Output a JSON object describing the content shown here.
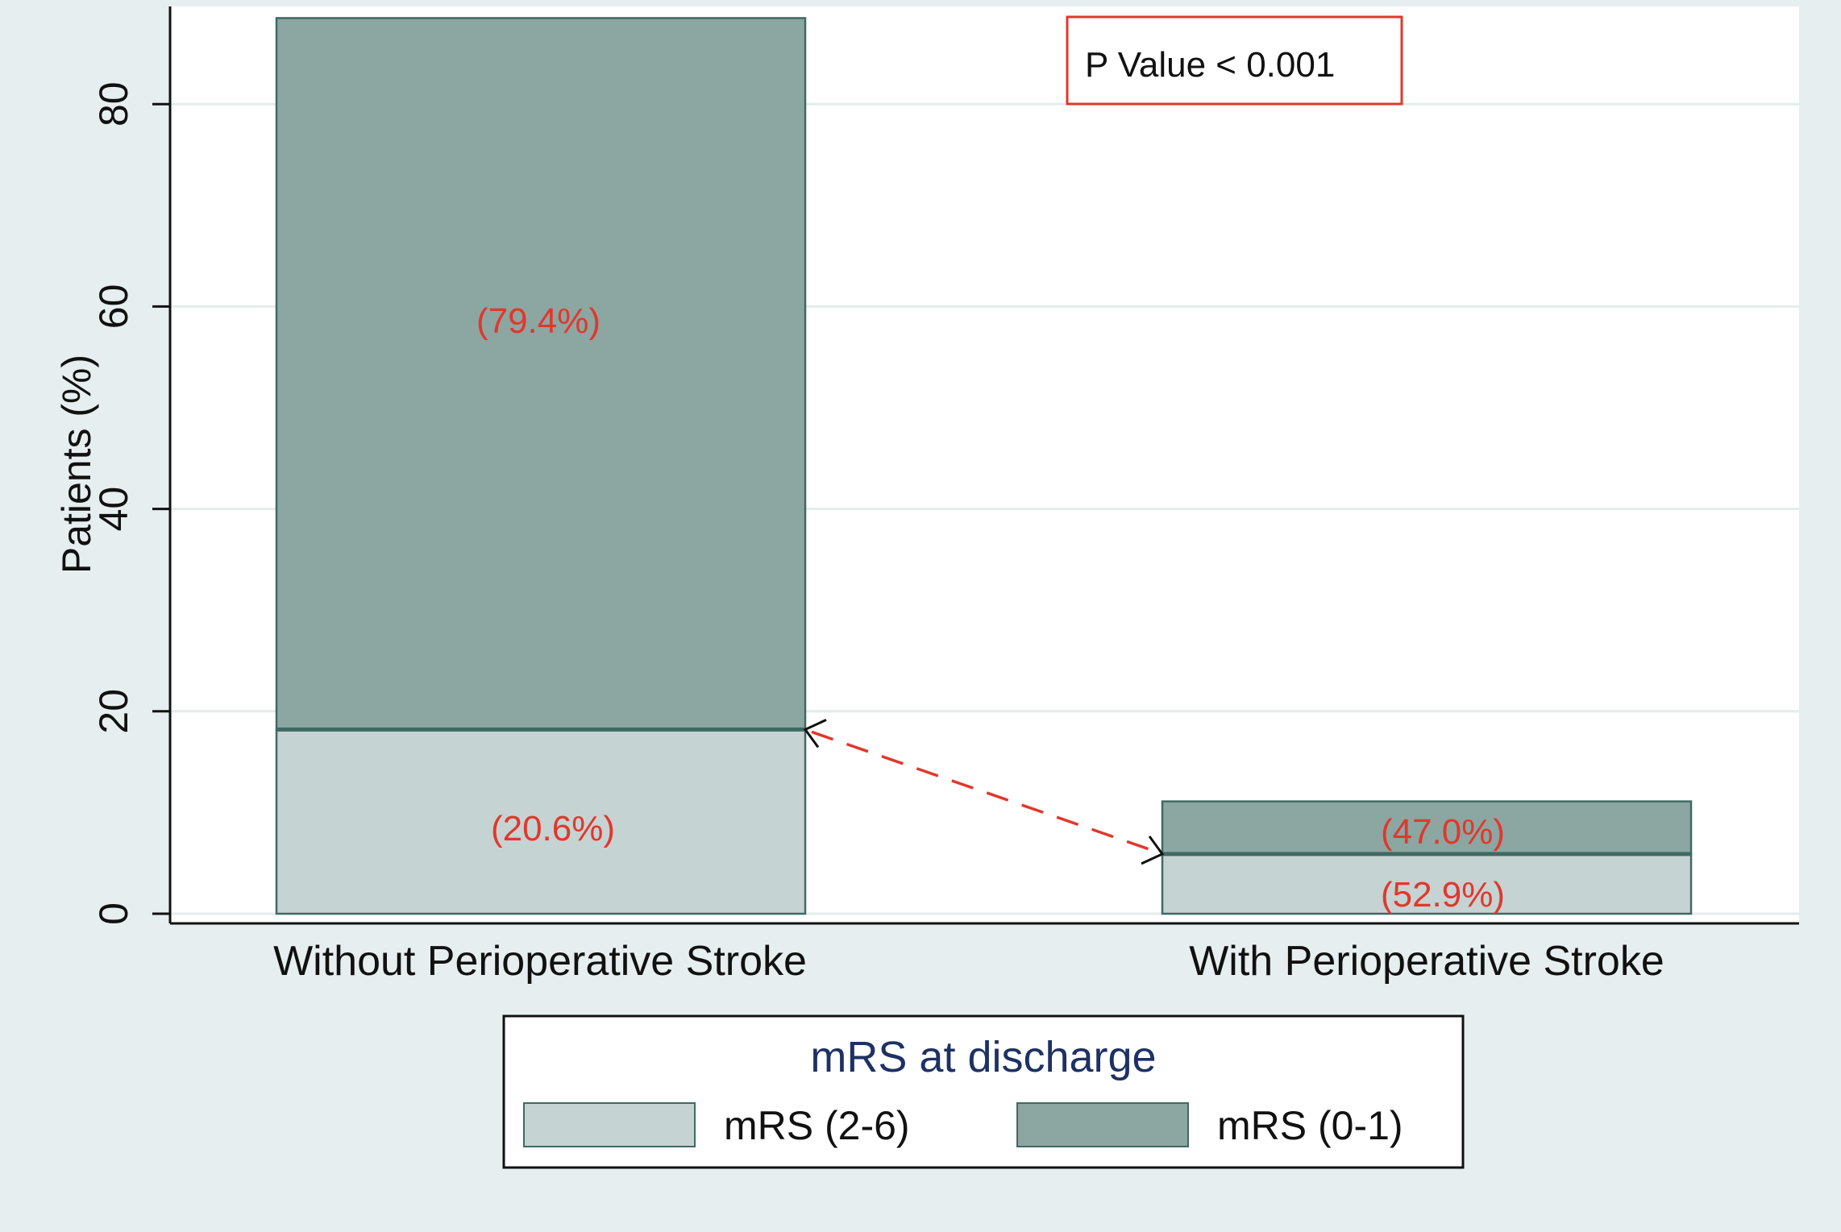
{
  "chart_data": {
    "type": "bar",
    "stacked": true,
    "categories": [
      "Without Perioperative Stroke",
      "With Perioperative Stroke"
    ],
    "series": [
      {
        "name": "mRS (2-6)",
        "values": [
          18.2,
          5.9
        ],
        "labels": [
          "(20.6%)",
          "(52.9%)"
        ],
        "color": "#c5d3d2"
      },
      {
        "name": "mRS (0-1)",
        "values": [
          70.3,
          5.2
        ],
        "labels": [
          "(79.4%)",
          "(47.0%)"
        ],
        "color": "#8ca6a1"
      }
    ],
    "ylabel": "Patients (%)",
    "xlabel": "",
    "ylim": [
      0,
      89
    ],
    "yticks": [
      0,
      20,
      40,
      60,
      80
    ],
    "grid": true,
    "legend": {
      "title": "mRS at discharge",
      "placement": "bottom"
    },
    "annotation": {
      "text": "P Value < 0.001"
    },
    "colors": {
      "plot_background": "#ffffff",
      "outer_background": "#e6eef0",
      "grid": "#e4ecec",
      "bar_edge": "#3f6a62",
      "data_label": "#e2372c",
      "annotation_box": "#e2372c",
      "annotation_text": "#3f6a62",
      "legend_title": "#1e3163",
      "arrow": "#e2372c"
    }
  }
}
